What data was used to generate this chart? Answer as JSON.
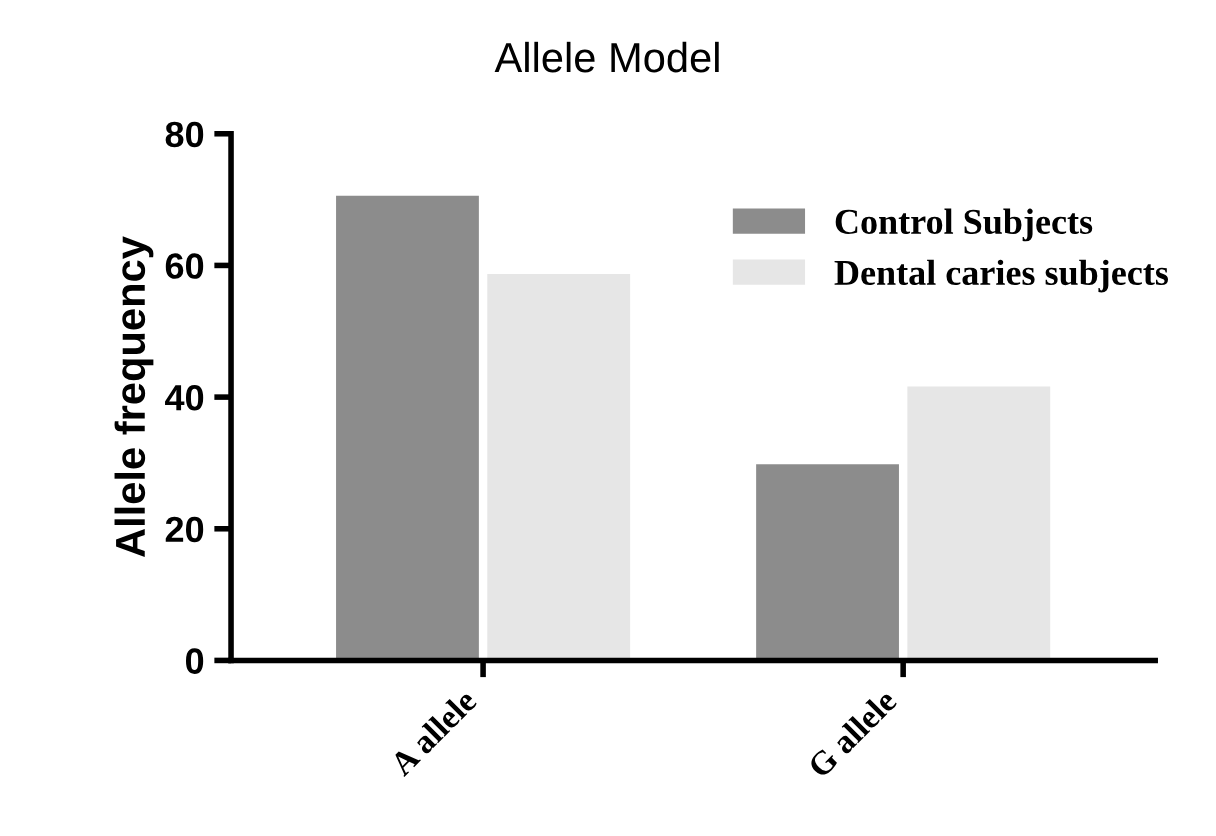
{
  "chart_data": {
    "type": "bar",
    "title": "Allele Model",
    "ylabel": "Allele frequency",
    "categories": [
      "A allele",
      "G allele"
    ],
    "series": [
      {
        "name": "Control Subjects",
        "color": "#8c8c8c",
        "values": [
          70.6,
          29.8
        ]
      },
      {
        "name": "Dental caries subjects",
        "color": "#e6e6e6",
        "values": [
          58.7,
          41.6
        ]
      }
    ],
    "ylim": [
      0,
      80
    ],
    "yticks": [
      0,
      20,
      40,
      60,
      80
    ],
    "grid": false,
    "legend": "top right"
  }
}
